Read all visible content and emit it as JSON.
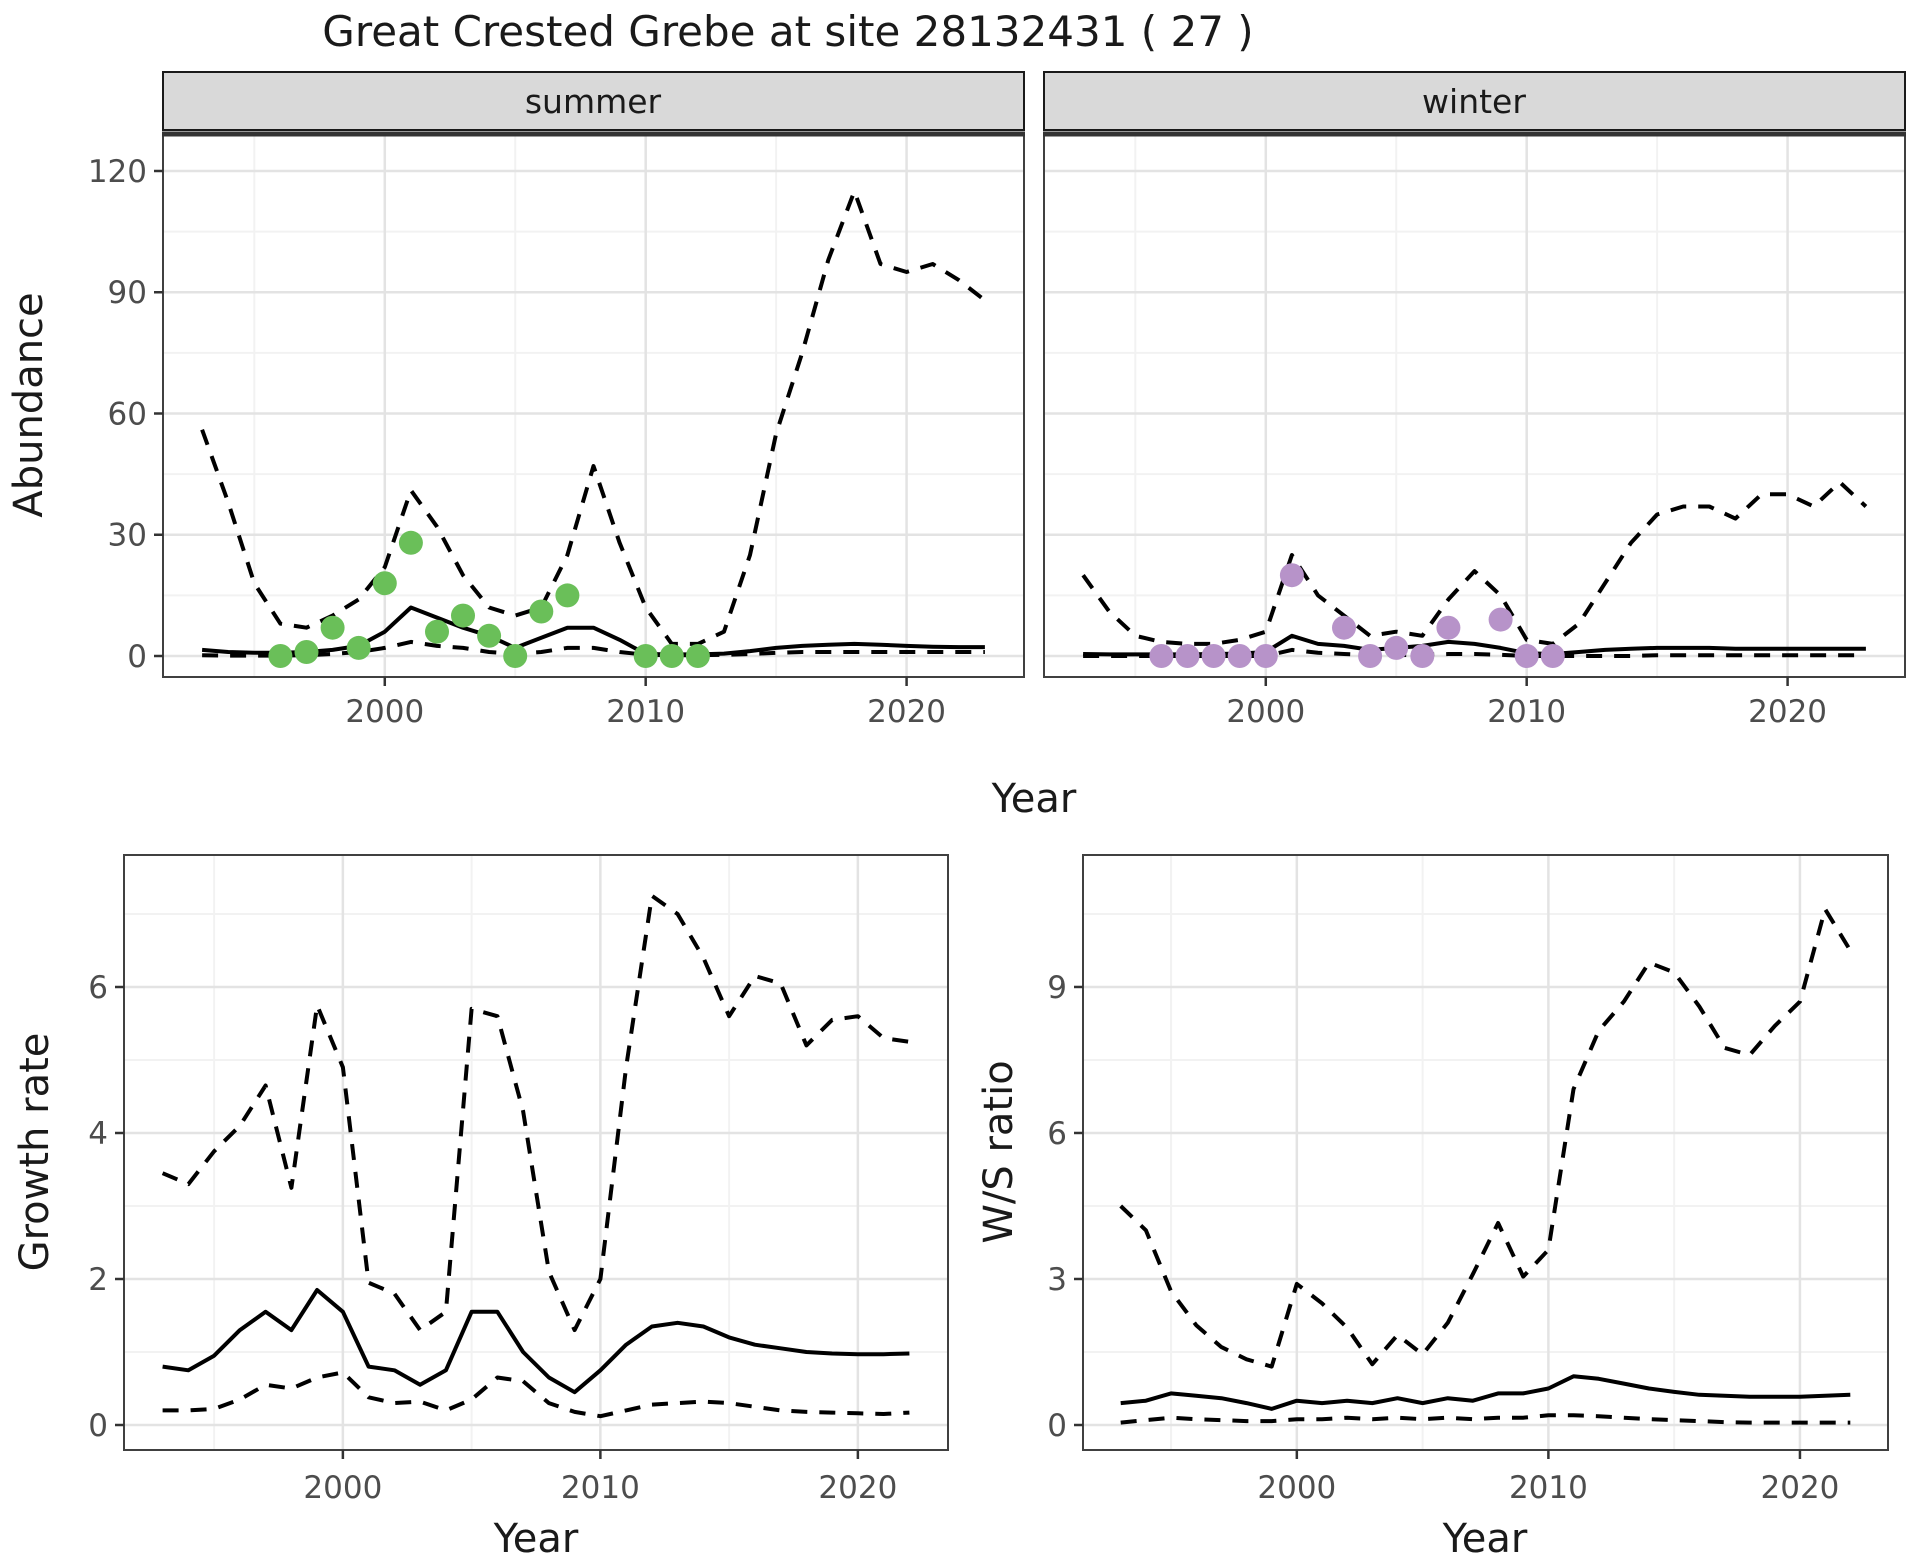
{
  "title": "Great Crested Grebe at site 28132431 ( 27 )",
  "axis_labels": {
    "abundance": "Abundance",
    "year_top": "Year",
    "year_growth": "Year",
    "year_ws": "Year",
    "growth": "Growth rate",
    "ws": "W/S ratio"
  },
  "facets": {
    "summer": "summer",
    "winter": "winter"
  },
  "colors": {
    "summer_obs": "#6abf59",
    "winter_obs": "#b793c9",
    "line": "#000000",
    "strip_bg": "#d9d9d9",
    "panel_border": "#404040",
    "grid_major": "#e3e3e3",
    "grid_minor": "#f2f2f2",
    "axis_text": "#4d4d4d"
  },
  "chart_data": [
    {
      "type": "line",
      "panel": "abundance_summer",
      "facet_label": "summer",
      "ylabel": "Abundance",
      "xlabel": "Year",
      "ylim": [
        0,
        120
      ],
      "yticks": [
        0,
        30,
        60,
        90,
        120
      ],
      "yminor": [
        15,
        45,
        75,
        105
      ],
      "xticks": [
        2000,
        2010,
        2020
      ],
      "xminor": [
        1995,
        2005,
        2015
      ],
      "x": [
        1993,
        1994,
        1995,
        1996,
        1997,
        1998,
        1999,
        2000,
        2001,
        2002,
        2003,
        2004,
        2005,
        2006,
        2007,
        2008,
        2009,
        2010,
        2011,
        2012,
        2013,
        2014,
        2015,
        2016,
        2017,
        2018,
        2019,
        2020,
        2021,
        2022,
        2023
      ],
      "series": [
        {
          "name": "upper_95ci",
          "style": "dashed",
          "values": [
            56,
            38,
            18,
            8,
            7,
            10,
            14,
            22,
            41,
            32,
            20,
            12,
            10,
            12,
            25,
            47,
            28,
            12,
            3,
            3,
            6,
            25,
            55,
            75,
            98,
            115,
            97,
            95,
            97,
            93,
            88
          ]
        },
        {
          "name": "median",
          "style": "solid",
          "values": [
            1.5,
            1,
            0.8,
            0.8,
            1,
            1.5,
            2.5,
            6,
            12,
            9.5,
            7,
            5,
            2,
            4.5,
            7,
            7,
            4,
            0.5,
            0.4,
            0.4,
            0.6,
            1.2,
            2,
            2.5,
            2.8,
            3,
            2.8,
            2.5,
            2.3,
            2.2,
            2.2
          ]
        },
        {
          "name": "lower_95ci",
          "style": "dashed",
          "values": [
            0.2,
            0.1,
            0.1,
            0.1,
            0.2,
            0.5,
            1,
            2,
            3.5,
            2.5,
            2,
            1,
            0.5,
            1,
            2,
            2,
            1,
            0.3,
            0.2,
            0.2,
            0.3,
            0.5,
            0.8,
            1,
            1,
            1,
            1,
            1,
            1,
            1,
            1
          ]
        }
      ],
      "observations": {
        "name": "summer_counts",
        "color": "#6abf59",
        "years": [
          1996,
          1997,
          1998,
          1999,
          2000,
          2001,
          2002,
          2003,
          2004,
          2005,
          2006,
          2007,
          2010,
          2011,
          2012
        ],
        "values": [
          0,
          1,
          7,
          2,
          18,
          28,
          6,
          10,
          5,
          0,
          11,
          15,
          0,
          0,
          0
        ]
      }
    },
    {
      "type": "line",
      "panel": "abundance_winter",
      "facet_label": "winter",
      "ylabel": "Abundance",
      "xlabel": "Year",
      "ylim": [
        0,
        120
      ],
      "yticks": [
        0,
        30,
        60,
        90,
        120
      ],
      "yminor": [
        15,
        45,
        75,
        105
      ],
      "xticks": [
        2000,
        2010,
        2020
      ],
      "xminor": [
        1995,
        2005,
        2015
      ],
      "x": [
        1993,
        1994,
        1995,
        1996,
        1997,
        1998,
        1999,
        2000,
        2001,
        2002,
        2003,
        2004,
        2005,
        2006,
        2007,
        2008,
        2009,
        2010,
        2011,
        2012,
        2013,
        2014,
        2015,
        2016,
        2017,
        2018,
        2019,
        2020,
        2021,
        2022,
        2023
      ],
      "series": [
        {
          "name": "upper_95ci",
          "style": "dashed",
          "values": [
            20,
            11,
            5,
            3.5,
            3,
            3,
            4,
            6,
            25,
            15,
            10,
            5,
            6,
            5,
            14,
            21,
            15,
            4,
            3,
            8,
            18,
            28,
            35,
            37,
            37,
            34,
            40,
            40,
            37,
            43,
            37
          ]
        },
        {
          "name": "median",
          "style": "solid",
          "values": [
            0.5,
            0.4,
            0.4,
            0.4,
            0.4,
            0.5,
            0.6,
            1,
            5,
            3,
            2.5,
            1.5,
            2,
            2.5,
            3.5,
            3,
            2,
            0.7,
            0.5,
            1,
            1.5,
            1.8,
            2,
            2,
            2,
            1.8,
            1.8,
            1.8,
            1.8,
            1.8,
            1.8
          ]
        },
        {
          "name": "lower_95ci",
          "style": "dashed",
          "values": [
            0,
            0,
            0,
            0,
            0,
            0,
            0,
            0,
            1.5,
            0.8,
            0.5,
            0.2,
            0.2,
            0.3,
            0.5,
            0.5,
            0.3,
            0,
            0,
            0,
            0,
            0,
            0.2,
            0.2,
            0.2,
            0.2,
            0.2,
            0.2,
            0.2,
            0.2,
            0.2
          ]
        }
      ],
      "observations": {
        "name": "winter_counts",
        "color": "#b793c9",
        "years": [
          1996,
          1997,
          1998,
          1999,
          2000,
          2001,
          2003,
          2004,
          2005,
          2006,
          2007,
          2009,
          2010,
          2011
        ],
        "values": [
          0,
          0,
          0,
          0,
          0,
          20,
          7,
          0,
          2,
          0,
          7,
          9,
          0,
          0
        ]
      }
    },
    {
      "type": "line",
      "panel": "growth_rate",
      "ylabel": "Growth rate",
      "xlabel": "Year",
      "ylim": [
        0,
        7.6
      ],
      "yticks": [
        0,
        2,
        4,
        6
      ],
      "yminor": [
        1,
        3,
        5,
        7
      ],
      "xticks": [
        2000,
        2010,
        2020
      ],
      "xminor": [
        1995,
        2005,
        2015
      ],
      "x": [
        1993,
        1994,
        1995,
        1996,
        1997,
        1998,
        1999,
        2000,
        2001,
        2002,
        2003,
        2004,
        2005,
        2006,
        2007,
        2008,
        2009,
        2010,
        2011,
        2012,
        2013,
        2014,
        2015,
        2016,
        2017,
        2018,
        2019,
        2020,
        2021,
        2022
      ],
      "series": [
        {
          "name": "upper_95ci",
          "style": "dashed",
          "values": [
            3.45,
            3.3,
            3.75,
            4.1,
            4.65,
            3.25,
            5.75,
            4.9,
            1.95,
            1.8,
            1.3,
            1.55,
            5.7,
            5.6,
            4.3,
            2.1,
            1.3,
            2.0,
            4.9,
            7.25,
            7.0,
            6.4,
            5.6,
            6.15,
            6.05,
            5.2,
            5.55,
            5.6,
            5.3,
            5.25
          ]
        },
        {
          "name": "median",
          "style": "solid",
          "values": [
            0.8,
            0.75,
            0.95,
            1.3,
            1.55,
            1.3,
            1.85,
            1.55,
            0.8,
            0.75,
            0.55,
            0.75,
            1.55,
            1.55,
            1.0,
            0.65,
            0.45,
            0.75,
            1.1,
            1.35,
            1.4,
            1.35,
            1.2,
            1.1,
            1.05,
            1.0,
            0.98,
            0.97,
            0.97,
            0.98
          ]
        },
        {
          "name": "lower_95ci",
          "style": "dashed",
          "values": [
            0.2,
            0.2,
            0.22,
            0.35,
            0.55,
            0.5,
            0.65,
            0.72,
            0.38,
            0.3,
            0.32,
            0.2,
            0.35,
            0.65,
            0.6,
            0.3,
            0.18,
            0.12,
            0.2,
            0.28,
            0.3,
            0.32,
            0.3,
            0.25,
            0.2,
            0.18,
            0.17,
            0.16,
            0.15,
            0.17
          ]
        }
      ]
    },
    {
      "type": "line",
      "panel": "ws_ratio",
      "ylabel": "W/S ratio",
      "xlabel": "Year",
      "ylim": [
        0,
        11.7
      ],
      "yticks": [
        0,
        3,
        6,
        9
      ],
      "yminor": [
        1.5,
        4.5,
        7.5,
        10.5
      ],
      "xticks": [
        2000,
        2010,
        2020
      ],
      "xminor": [
        1995,
        2005,
        2015
      ],
      "x": [
        1993,
        1994,
        1995,
        1996,
        1997,
        1998,
        1999,
        2000,
        2001,
        2002,
        2003,
        2004,
        2005,
        2006,
        2007,
        2008,
        2009,
        2010,
        2011,
        2012,
        2013,
        2014,
        2015,
        2016,
        2017,
        2018,
        2019,
        2020,
        2021,
        2022
      ],
      "series": [
        {
          "name": "upper_95ci",
          "style": "dashed",
          "values": [
            4.5,
            4.0,
            2.75,
            2.05,
            1.6,
            1.35,
            1.2,
            2.9,
            2.5,
            2.0,
            1.25,
            1.85,
            1.45,
            2.1,
            3.1,
            4.15,
            3.05,
            3.6,
            6.9,
            8.1,
            8.7,
            9.5,
            9.3,
            8.6,
            7.75,
            7.6,
            8.2,
            8.7,
            10.6,
            9.75
          ]
        },
        {
          "name": "median",
          "style": "solid",
          "values": [
            0.45,
            0.5,
            0.65,
            0.6,
            0.55,
            0.45,
            0.33,
            0.5,
            0.45,
            0.5,
            0.45,
            0.55,
            0.45,
            0.55,
            0.5,
            0.65,
            0.65,
            0.75,
            1.0,
            0.95,
            0.85,
            0.75,
            0.68,
            0.62,
            0.6,
            0.58,
            0.58,
            0.58,
            0.6,
            0.62
          ]
        },
        {
          "name": "lower_95ci",
          "style": "dashed",
          "values": [
            0.05,
            0.1,
            0.15,
            0.12,
            0.1,
            0.08,
            0.08,
            0.12,
            0.12,
            0.15,
            0.12,
            0.15,
            0.12,
            0.15,
            0.12,
            0.15,
            0.15,
            0.2,
            0.2,
            0.18,
            0.15,
            0.12,
            0.1,
            0.08,
            0.06,
            0.05,
            0.05,
            0.05,
            0.05,
            0.05
          ]
        }
      ]
    }
  ]
}
